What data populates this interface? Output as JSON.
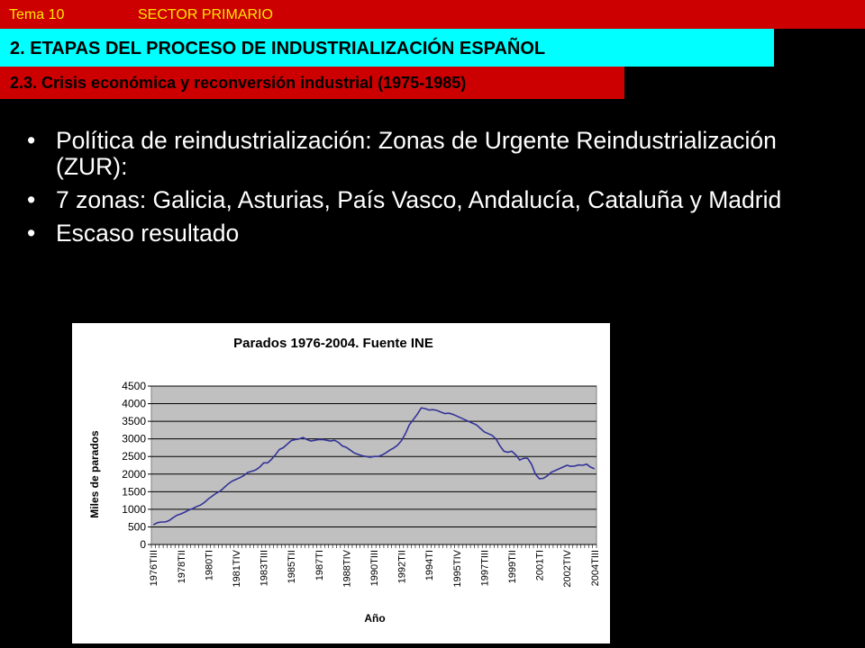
{
  "header": {
    "topic": "Tema 10",
    "sector": "SECTOR PRIMARIO",
    "section_title": "2. ETAPAS DEL PROCESO DE INDUSTRIALIZACIÓN ESPAÑOL",
    "subsection_title": "2.3. Crisis económica y reconversión industrial (1975-1985)"
  },
  "colors": {
    "background": "#000000",
    "header_red": "#cc0000",
    "header_yellow_text": "#ffe600",
    "section_cyan": "#00ffff",
    "plot_area": "#c0c0c0",
    "series_line": "#333399"
  },
  "bullets": [
    "Política de reindustrialización: Zonas de Urgente Reindustrialización (ZUR):",
    "7 zonas: Galicia, Asturias, País Vasco, Andalucía, Cataluña y Madrid",
    "Escaso resultado"
  ],
  "chart_data": {
    "type": "line",
    "title": "Parados 1976-2004. Fuente INE",
    "xlabel": "Año",
    "ylabel": "Miles de parados",
    "ylim": [
      0,
      4500
    ],
    "yticks": [
      0,
      500,
      1000,
      1500,
      2000,
      2500,
      3000,
      3500,
      4000,
      4500
    ],
    "grid": true,
    "legend": "none",
    "x_tick_labels": [
      "1976TIII",
      "1978TII",
      "1980TI",
      "1981TIV",
      "1983TIII",
      "1985TII",
      "1987TI",
      "1988TIV",
      "1990TIII",
      "1992TII",
      "1994TI",
      "1995TIV",
      "1997TIII",
      "1999TII",
      "2001TI",
      "2002TIV",
      "2004TIII"
    ],
    "series": [
      {
        "x": [
          "1976TIII",
          "1976TIV",
          "1977TI",
          "1977TII",
          "1977TIII",
          "1977TIV",
          "1978TI",
          "1978TII",
          "1978TIII",
          "1978TIV",
          "1979TI",
          "1979TII",
          "1979TIII",
          "1979TIV",
          "1980TI",
          "1980TII",
          "1980TIII",
          "1980TIV",
          "1981TI",
          "1981TII",
          "1981TIII",
          "1981TIV",
          "1982TI",
          "1982TII",
          "1982TIII",
          "1982TIV",
          "1983TI",
          "1983TII",
          "1983TIII",
          "1983TIV",
          "1984TI",
          "1984TII",
          "1984TIII",
          "1984TIV",
          "1985TI",
          "1985TII",
          "1985TIII",
          "1985TIV",
          "1986TI",
          "1986TII",
          "1986TIII",
          "1986TIV",
          "1987TI",
          "1987TII",
          "1987TIII",
          "1987TIV",
          "1988TI",
          "1988TII",
          "1988TIII",
          "1988TIV",
          "1989TI",
          "1989TII",
          "1989TIII",
          "1989TIV",
          "1990TI",
          "1990TII",
          "1990TIII",
          "1990TIV",
          "1991TI",
          "1991TII",
          "1991TIII",
          "1991TIV",
          "1992TI",
          "1992TII",
          "1992TIII",
          "1992TIV",
          "1993TI",
          "1993TII",
          "1993TIII",
          "1993TIV",
          "1994TI",
          "1994TII",
          "1994TIII",
          "1994TIV",
          "1995TI",
          "1995TII",
          "1995TIII",
          "1995TIV",
          "1996TI",
          "1996TII",
          "1996TIII",
          "1996TIV",
          "1997TI",
          "1997TII",
          "1997TIII",
          "1997TIV",
          "1998TI",
          "1998TII",
          "1998TIII",
          "1998TIV",
          "1999TI",
          "1999TII",
          "1999TIII",
          "1999TIV",
          "2000TI",
          "2000TII",
          "2000TIII",
          "2000TIV",
          "2001TI",
          "2001TII",
          "2001TIII",
          "2001TIV",
          "2002TI",
          "2002TII",
          "2002TIII",
          "2002TIV",
          "2003TI",
          "2003TII",
          "2003TIII",
          "2003TIV",
          "2004TI",
          "2004TII",
          "2004TIII"
        ],
        "values": [
          560,
          620,
          640,
          640,
          680,
          760,
          830,
          870,
          920,
          980,
          1020,
          1080,
          1120,
          1200,
          1300,
          1380,
          1460,
          1520,
          1620,
          1720,
          1800,
          1850,
          1900,
          1960,
          2050,
          2080,
          2120,
          2200,
          2320,
          2320,
          2420,
          2550,
          2700,
          2750,
          2850,
          2950,
          2980,
          3000,
          3040,
          2980,
          2940,
          2960,
          2980,
          2980,
          2960,
          2940,
          2960,
          2900,
          2800,
          2760,
          2680,
          2600,
          2560,
          2520,
          2500,
          2480,
          2500,
          2500,
          2540,
          2600,
          2680,
          2740,
          2820,
          2950,
          3150,
          3400,
          3550,
          3700,
          3880,
          3860,
          3820,
          3830,
          3810,
          3760,
          3720,
          3730,
          3700,
          3650,
          3600,
          3550,
          3500,
          3450,
          3400,
          3300,
          3200,
          3150,
          3100,
          3000,
          2800,
          2650,
          2620,
          2650,
          2550,
          2400,
          2450,
          2450,
          2280,
          2000,
          1870,
          1880,
          1950,
          2050,
          2100,
          2150,
          2200,
          2250,
          2220,
          2230,
          2260,
          2250,
          2280,
          2200,
          2150
        ]
      }
    ]
  }
}
